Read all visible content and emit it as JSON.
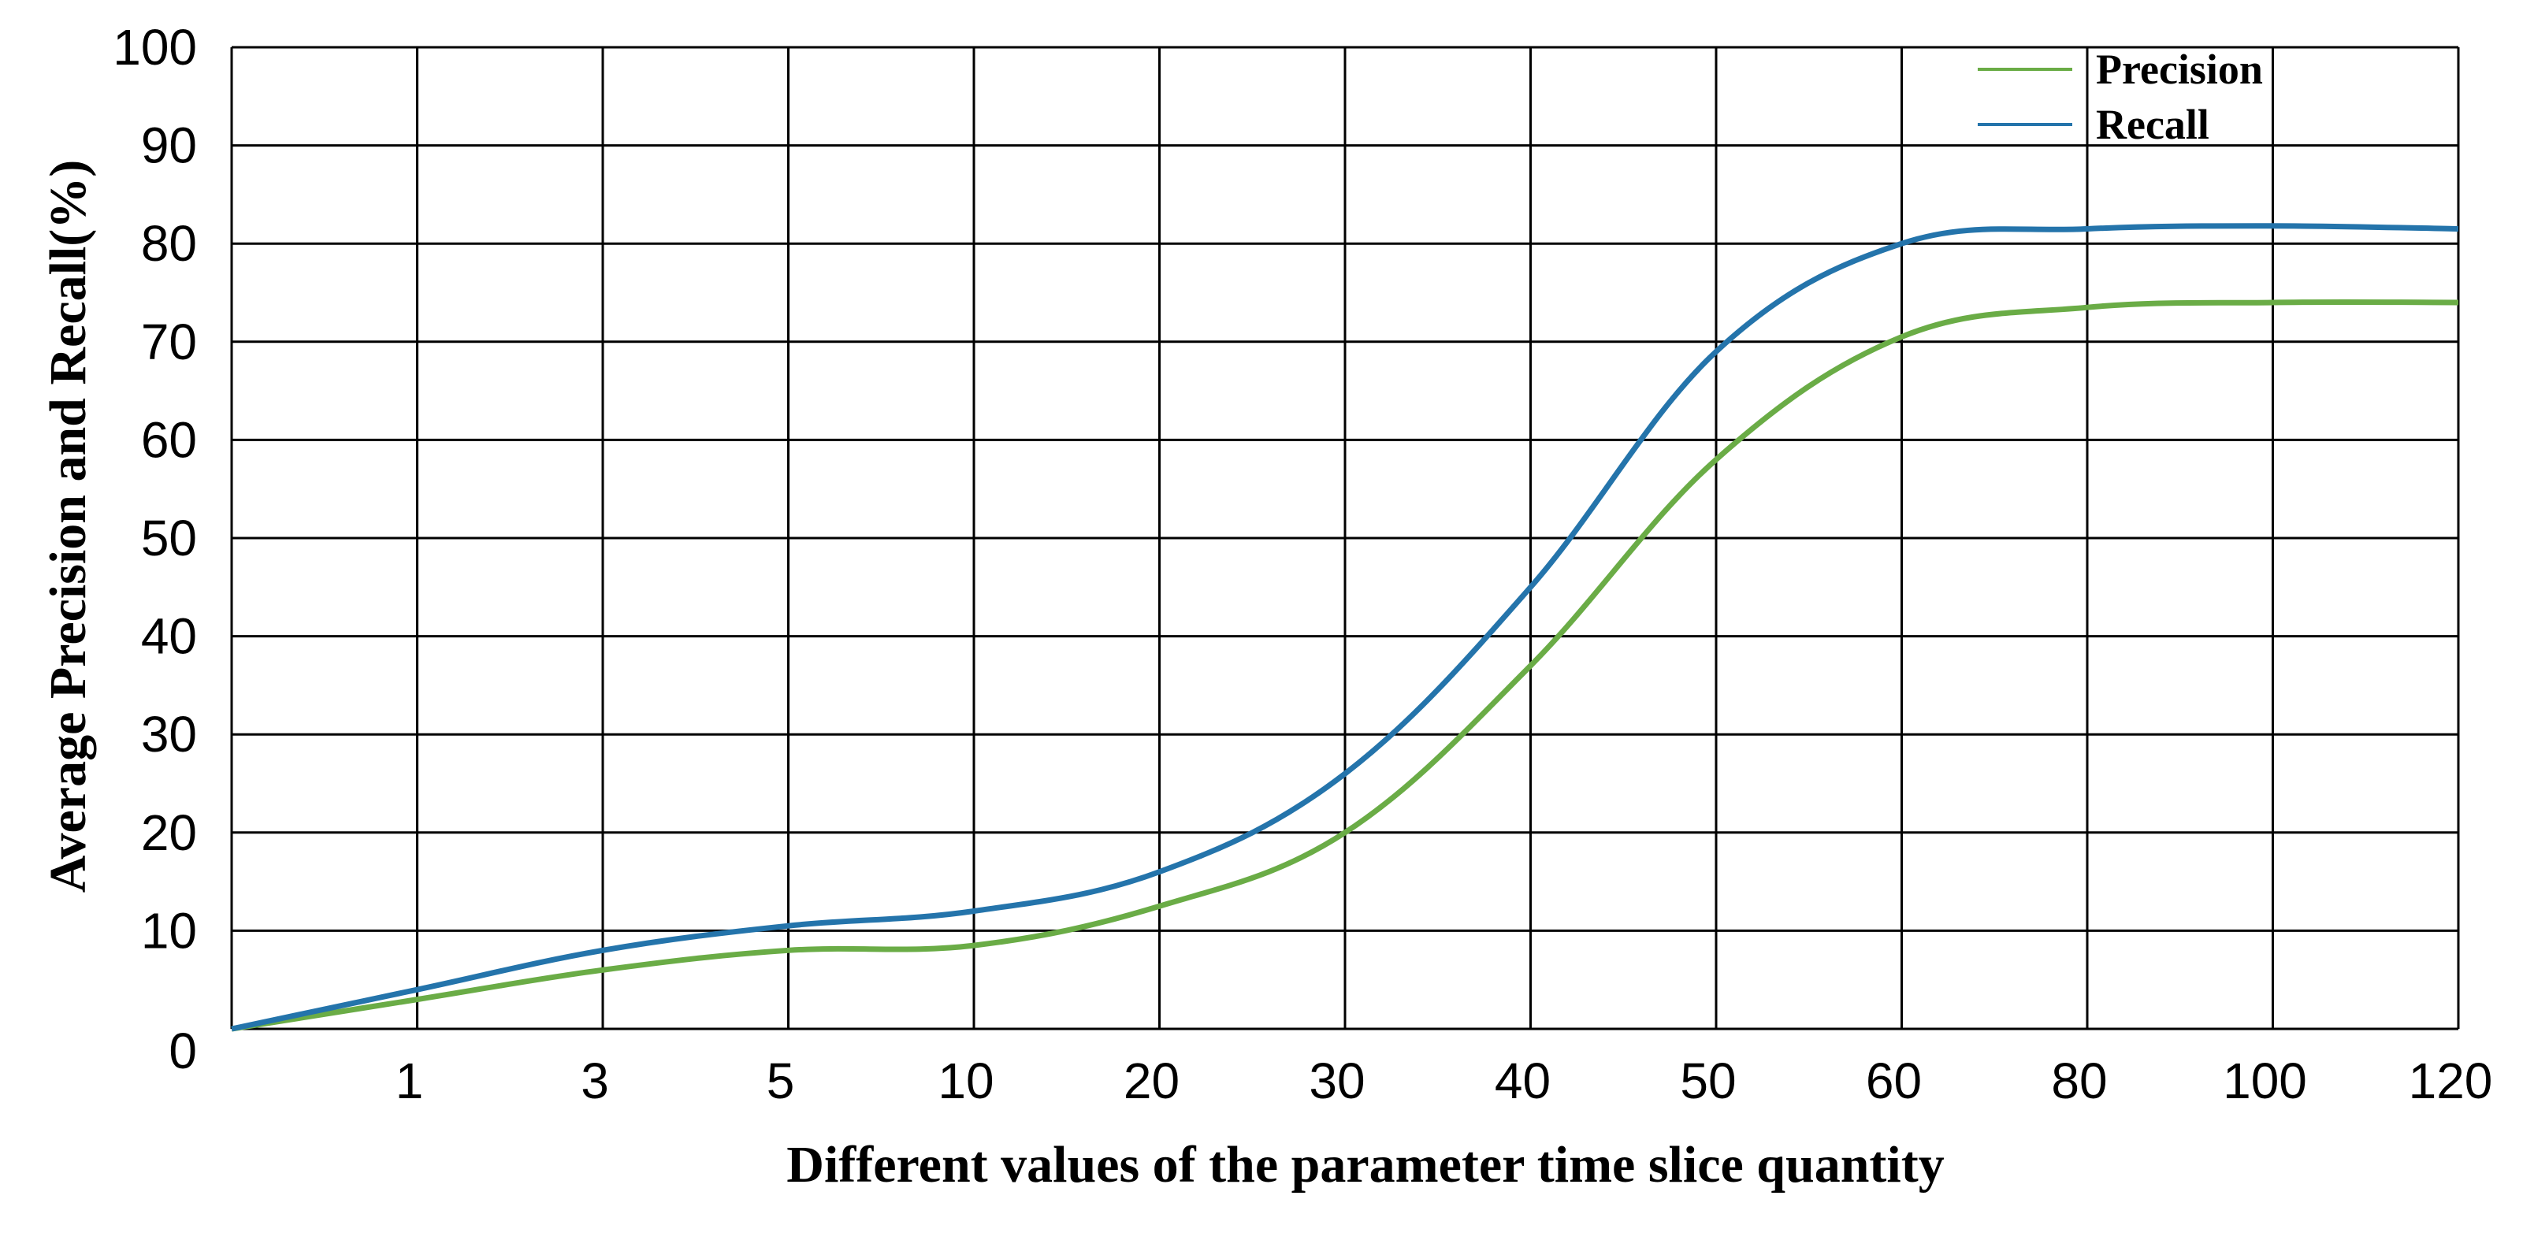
{
  "chart_data": {
    "type": "line",
    "title": "",
    "xlabel": "Different values of the parameter time slice quantity",
    "ylabel": "Average Precision and Recall(%)",
    "x_categories": [
      "0",
      "1",
      "3",
      "5",
      "10",
      "20",
      "30",
      "40",
      "50",
      "60",
      "80",
      "100",
      "120"
    ],
    "x_axis_note": "categorical axis: tick labels equally spaced",
    "y_ticks": [
      "0",
      "10",
      "20",
      "30",
      "40",
      "50",
      "60",
      "70",
      "80",
      "90",
      "100"
    ],
    "ylim": [
      0,
      100
    ],
    "grid": true,
    "legend_position": "top-right",
    "series": [
      {
        "name": "Precision",
        "color": "#6aac46",
        "values": [
          0,
          3,
          6,
          8,
          8.5,
          12.5,
          20,
          37,
          58,
          70.5,
          73.5,
          74,
          74
        ]
      },
      {
        "name": "Recall",
        "color": "#2474ab",
        "values": [
          0,
          4,
          8,
          10.5,
          12,
          16,
          26,
          45,
          69,
          80,
          81.5,
          81.8,
          81.5
        ]
      }
    ]
  }
}
